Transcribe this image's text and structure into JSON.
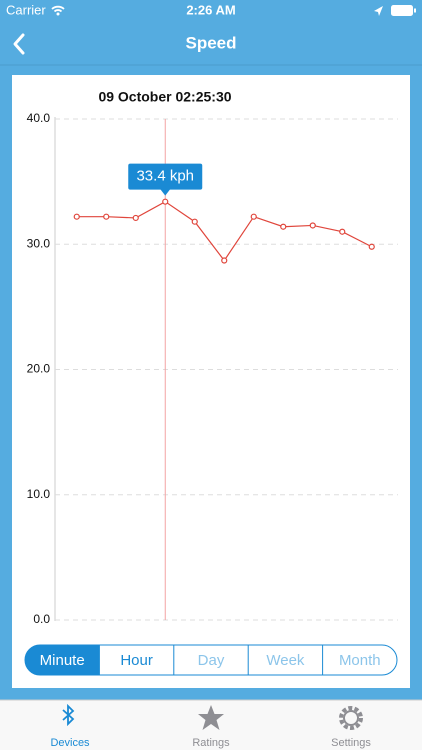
{
  "status_bar": {
    "carrier": "Carrier",
    "time": "2:26 AM"
  },
  "nav": {
    "title": "Speed"
  },
  "chart_data": {
    "type": "line",
    "crosshair_label": "09 October 02:25:30",
    "categories": [
      null,
      null,
      null,
      null,
      null,
      null,
      null,
      null,
      null,
      null,
      null
    ],
    "series": [
      {
        "color": "#e0463c",
        "values": [
          32.2,
          32.2,
          32.1,
          33.4,
          31.8,
          28.7,
          32.2,
          31.4,
          31.5,
          31.0,
          29.8
        ],
        "value_labels": [
          null,
          null,
          null,
          "33.4 kph",
          null,
          null,
          null,
          null,
          null,
          null,
          null
        ]
      }
    ],
    "ylim": [
      0,
      40
    ],
    "yticks": [
      {
        "value": 0,
        "label": "0.0"
      },
      {
        "value": 10,
        "label": "10.0"
      },
      {
        "value": 20,
        "label": "20.0"
      },
      {
        "value": 30,
        "label": "30.0"
      },
      {
        "value": 40,
        "label": "40.0"
      }
    ],
    "grid": true
  },
  "range_selector": {
    "options": [
      "Minute",
      "Hour",
      "Day",
      "Week",
      "Month"
    ],
    "selected": 0
  },
  "tab_bar": {
    "items": [
      "Devices",
      "Ratings",
      "Settings"
    ],
    "selected": 0
  }
}
